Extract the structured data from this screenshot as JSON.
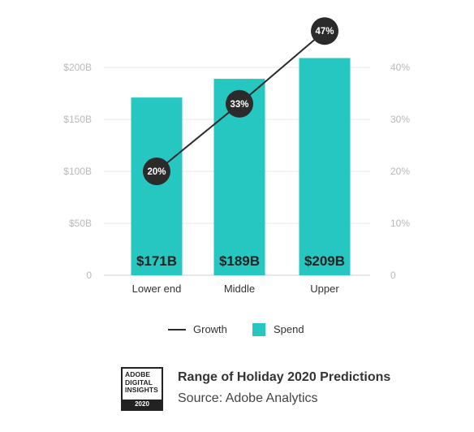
{
  "chart_data": {
    "type": "bar",
    "categories": [
      "Lower end",
      "Middle",
      "Upper"
    ],
    "series": [
      {
        "name": "Spend",
        "type": "bar",
        "axis": "left",
        "values": [
          171,
          189,
          209
        ],
        "labels": [
          "$171B",
          "$189B",
          "$209B"
        ],
        "color": "#26c6c1"
      },
      {
        "name": "Growth",
        "type": "line",
        "axis": "right",
        "values": [
          20,
          33,
          47
        ],
        "labels": [
          "20%",
          "33%",
          "47%"
        ],
        "color": "#2b2b2b"
      }
    ],
    "y_left": {
      "ylim": [
        0,
        250
      ],
      "ticks": [
        0,
        50,
        100,
        150,
        200
      ],
      "tick_labels": [
        "0",
        "$50B",
        "$100B",
        "$150B",
        "$200B"
      ]
    },
    "y_right": {
      "ylim": [
        0,
        50
      ],
      "ticks": [
        0,
        10,
        20,
        30,
        40
      ],
      "tick_labels": [
        "0",
        "10%",
        "20%",
        "30%",
        "40%"
      ]
    },
    "grid": true,
    "legend": {
      "position": "bottom",
      "items": [
        "Growth",
        "Spend"
      ]
    }
  },
  "caption": {
    "title": "Range of Holiday 2020 Predictions",
    "source": "Source: Adobe Analytics"
  },
  "logo": {
    "lines": [
      "ADOBE",
      "DIGITAL",
      "INSIGHTS"
    ],
    "year": "2020"
  }
}
